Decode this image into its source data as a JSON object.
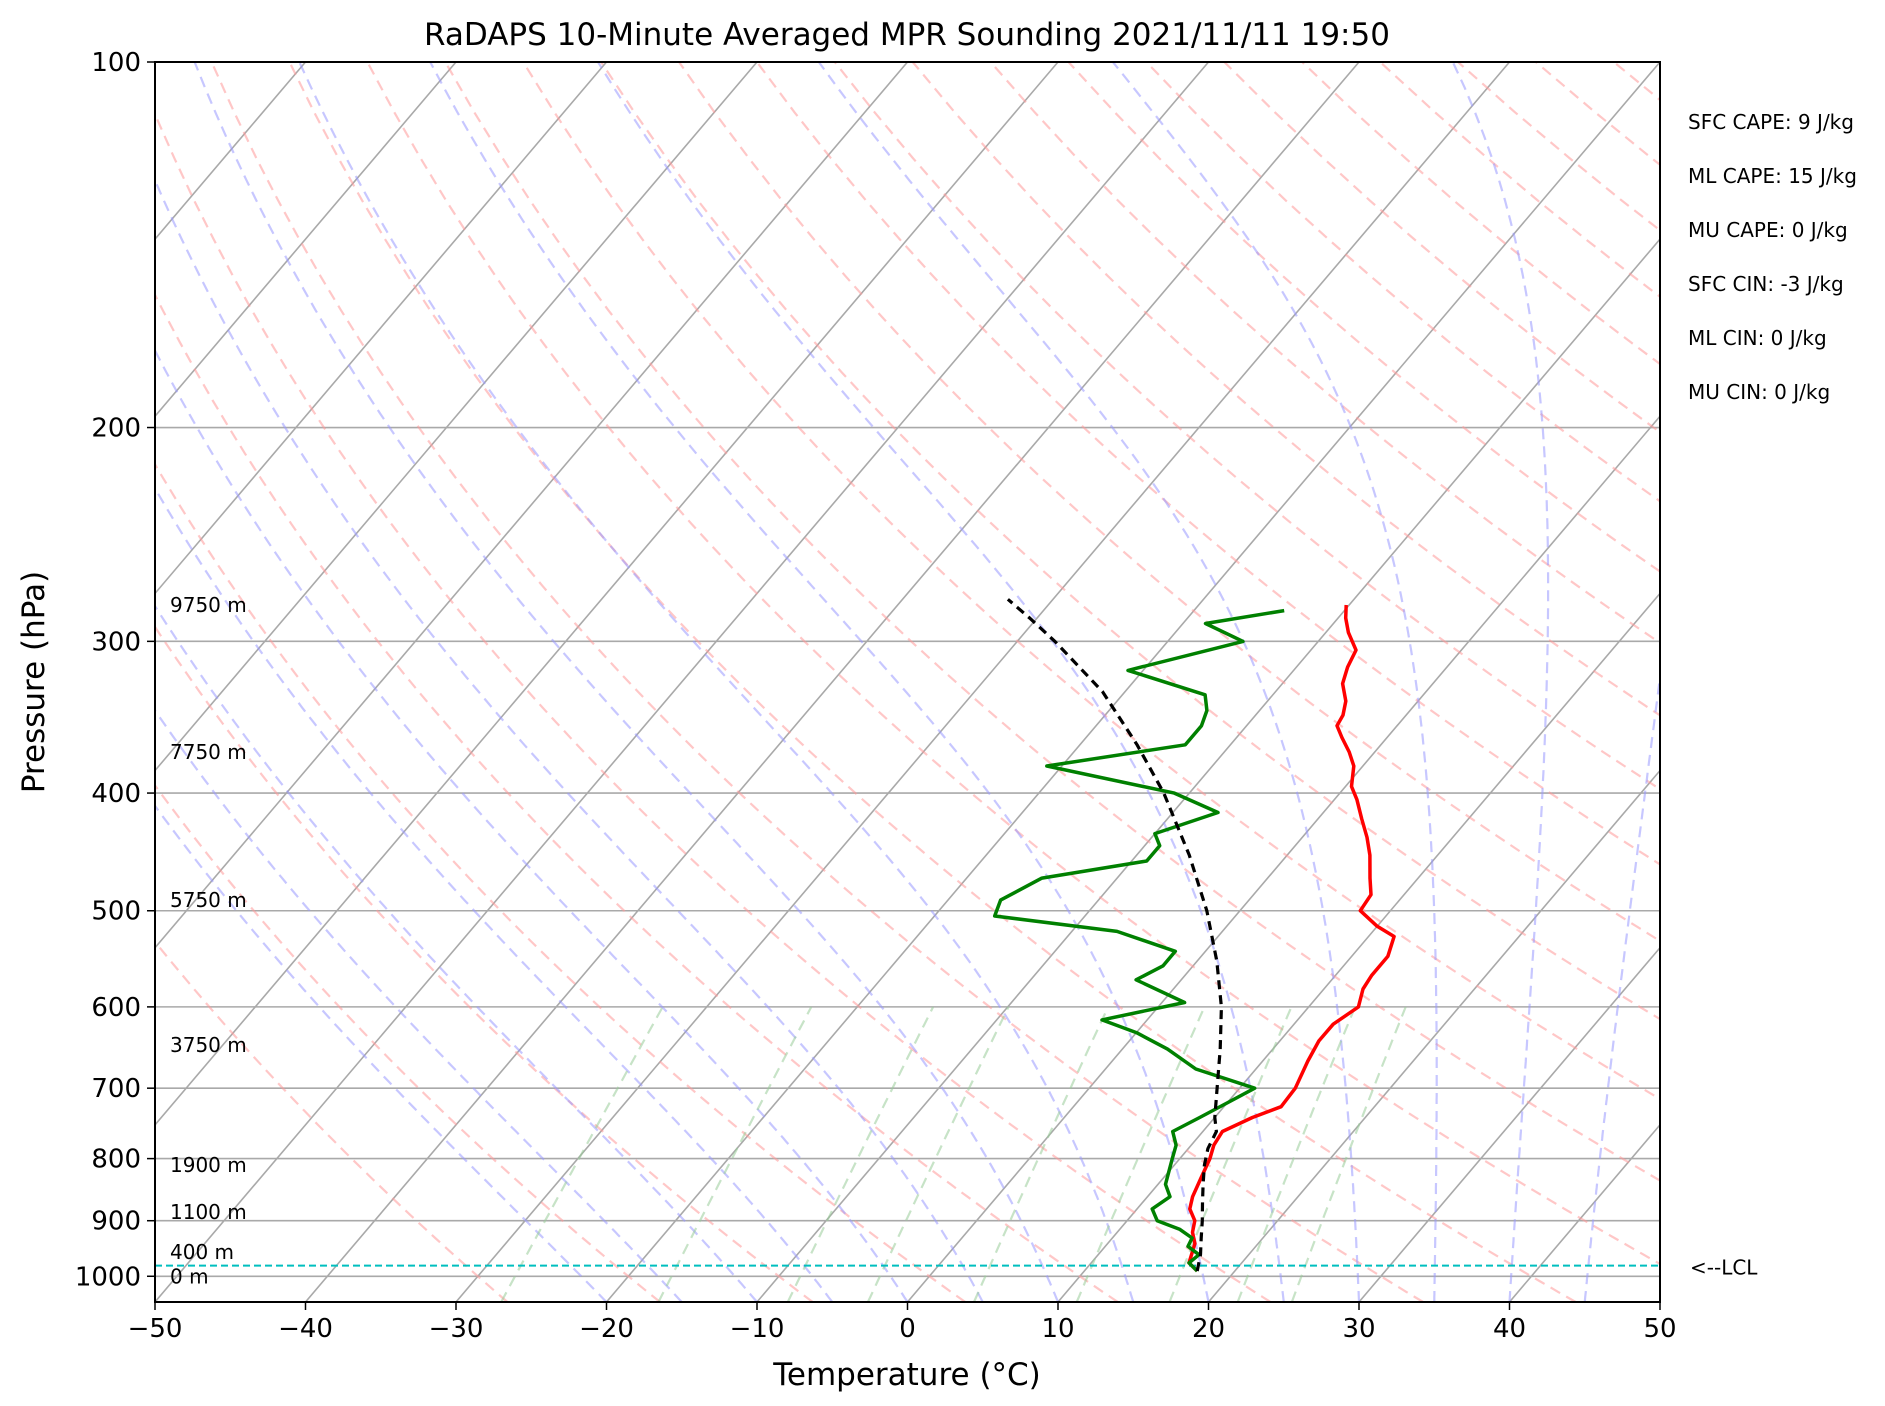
{
  "chart_data": {
    "type": "line",
    "title": "RaDAPS 10-Minute Averaged MPR Sounding 2021/11/11 19:50",
    "xlabel": "Temperature (°C)",
    "ylabel": "Pressure (hPa)",
    "xlim": [
      -50,
      50
    ],
    "ylim": [
      1050,
      100
    ],
    "y_scale": "log",
    "x_ticks": [
      "−50",
      "−40",
      "−30",
      "−20",
      "−10",
      "0",
      "10",
      "20",
      "30",
      "40",
      "50"
    ],
    "y_ticks": [
      "100",
      "200",
      "300",
      "400",
      "500",
      "600",
      "700",
      "800",
      "900",
      "1000"
    ],
    "grid": true,
    "skew": true,
    "colors": {
      "temperature": "#ff0000",
      "dewpoint": "#008000",
      "parcel": "#000000",
      "isotherm": "#a9a9a9",
      "dry_adiabat": "#ff9999",
      "moist_adiabat": "#9999ff",
      "mixing_ratio": "#99cc99",
      "lcl": "#00bfbf"
    },
    "series": [
      {
        "key": "temperature",
        "points": [
          [
            17.5,
            990
          ],
          [
            16.5,
            975
          ],
          [
            16.2,
            960
          ],
          [
            15.8,
            940
          ],
          [
            15.0,
            920
          ],
          [
            14.5,
            900
          ],
          [
            13.5,
            880
          ],
          [
            13.0,
            860
          ],
          [
            12.5,
            830
          ],
          [
            12.0,
            800
          ],
          [
            11.5,
            780
          ],
          [
            11.3,
            760
          ],
          [
            12.5,
            740
          ],
          [
            13.8,
            725
          ],
          [
            13.7,
            700
          ],
          [
            13.0,
            665
          ],
          [
            12.6,
            640
          ],
          [
            12.6,
            620
          ],
          [
            13.3,
            600
          ],
          [
            12.6,
            580
          ],
          [
            12.4,
            565
          ],
          [
            12.4,
            545
          ],
          [
            11.7,
            525
          ],
          [
            10.0,
            515
          ],
          [
            8.0,
            500
          ],
          [
            7.8,
            485
          ],
          [
            6.8,
            470
          ],
          [
            5.5,
            450
          ],
          [
            4.3,
            435
          ],
          [
            2.9,
            420
          ],
          [
            1.5,
            405
          ],
          [
            0.4,
            395
          ],
          [
            -0.6,
            380
          ],
          [
            -1.7,
            370
          ],
          [
            -3.0,
            360
          ],
          [
            -4.0,
            352
          ],
          [
            -4.2,
            345
          ],
          [
            -4.8,
            336
          ],
          [
            -6.0,
            325
          ],
          [
            -6.6,
            315
          ],
          [
            -7.0,
            305
          ],
          [
            -8.5,
            295
          ],
          [
            -9.5,
            287
          ],
          [
            -10.2,
            280
          ]
        ]
      },
      {
        "key": "dewpoint",
        "points": [
          [
            17.5,
            990
          ],
          [
            16.5,
            975
          ],
          [
            16.7,
            960
          ],
          [
            15.5,
            945
          ],
          [
            15.3,
            930
          ],
          [
            14.0,
            915
          ],
          [
            12.0,
            900
          ],
          [
            11.0,
            880
          ],
          [
            11.5,
            860
          ],
          [
            10.5,
            840
          ],
          [
            9.5,
            800
          ],
          [
            9.0,
            780
          ],
          [
            8.0,
            760
          ],
          [
            9.0,
            740
          ],
          [
            10.0,
            720
          ],
          [
            11.0,
            700
          ],
          [
            6.0,
            675
          ],
          [
            3.0,
            650
          ],
          [
            0.0,
            630
          ],
          [
            -3.0,
            615
          ],
          [
            1.5,
            595
          ],
          [
            -3.0,
            570
          ],
          [
            -2.0,
            555
          ],
          [
            -2.0,
            540
          ],
          [
            -7.0,
            520
          ],
          [
            -16.0,
            505
          ],
          [
            -16.5,
            490
          ],
          [
            -15.0,
            470
          ],
          [
            -9.0,
            455
          ],
          [
            -9.0,
            442
          ],
          [
            -10.0,
            432
          ],
          [
            -7.0,
            415
          ],
          [
            -11.0,
            400
          ],
          [
            -21.0,
            380
          ],
          [
            -13.0,
            365
          ],
          [
            -13.0,
            352
          ],
          [
            -13.5,
            342
          ],
          [
            -14.5,
            332
          ],
          [
            -21.0,
            317
          ],
          [
            -15.0,
            300
          ],
          [
            -18.5,
            290
          ],
          [
            -14.0,
            283
          ]
        ]
      },
      {
        "key": "parcel",
        "points": [
          [
            17.5,
            990
          ],
          [
            16.8,
            960
          ],
          [
            15.9,
            930
          ],
          [
            15.0,
            900
          ],
          [
            14.0,
            870
          ],
          [
            13.0,
            840
          ],
          [
            12.0,
            810
          ],
          [
            11.3,
            785
          ],
          [
            10.9,
            760
          ],
          [
            10.0,
            740
          ],
          [
            8.5,
            700
          ],
          [
            6.5,
            650
          ],
          [
            4.2,
            600
          ],
          [
            1.3,
            550
          ],
          [
            -2.2,
            500
          ],
          [
            -6.5,
            450
          ],
          [
            -11.7,
            400
          ],
          [
            -16.2,
            365
          ],
          [
            -21.5,
            330
          ],
          [
            -27.5,
            300
          ],
          [
            -30.5,
            287
          ],
          [
            -33.0,
            277
          ]
        ]
      }
    ],
    "stats": [
      "SFC CAPE: 9 J/kg",
      "ML CAPE: 15 J/kg",
      "MU CAPE: 0 J/kg",
      "SFC CIN: -3 J/kg",
      "ML CIN: 0 J/kg",
      "MU CIN: 0 J/kg"
    ],
    "height_labels": [
      {
        "text": "0 m",
        "p": 1000
      },
      {
        "text": "400 m",
        "p": 955
      },
      {
        "text": "1100 m",
        "p": 885
      },
      {
        "text": "1900 m",
        "p": 810
      },
      {
        "text": "3750 m",
        "p": 645
      },
      {
        "text": "5750 m",
        "p": 490
      },
      {
        "text": "7750 m",
        "p": 370
      },
      {
        "text": "9750 m",
        "p": 280
      }
    ],
    "lcl": {
      "p": 980,
      "label": "<--LCL"
    }
  }
}
